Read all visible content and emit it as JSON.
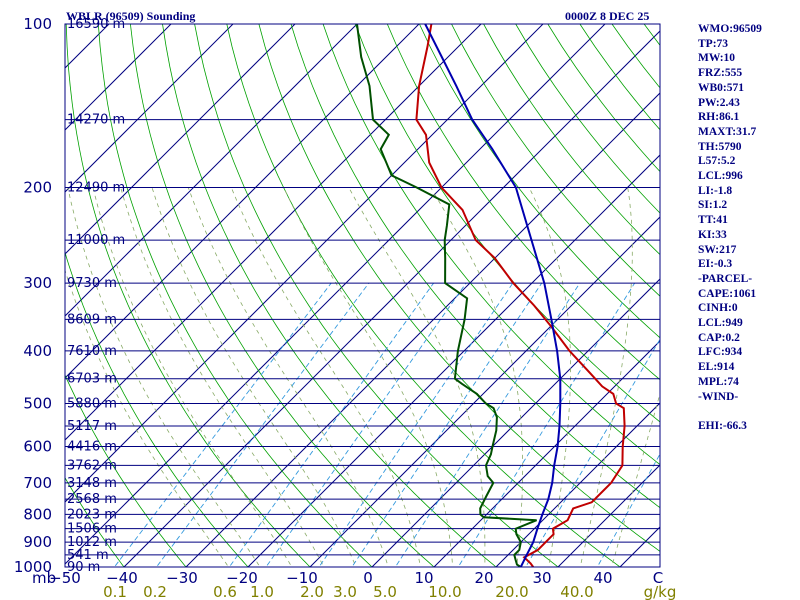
{
  "header": {
    "station": "WBLR (96509) Sounding",
    "time": "0000Z  8 DEC 25"
  },
  "indices": [
    "WMO:96509",
    "TP:73",
    "MW:10",
    "FRZ:555",
    "WB0:571",
    "PW:2.43",
    "RH:86.1",
    "MAXT:31.7",
    "TH:5790",
    "L57:5.2",
    "LCL:996",
    "LI:-1.8",
    "SI:1.2",
    "TT:41",
    "KI:33",
    "SW:217",
    "EI:-0.3",
    "-PARCEL-",
    "CAPE:1061",
    "CINH:0",
    "LCL:949",
    "CAP:0.2",
    "LFC:934",
    "EL:914",
    "MPL:74",
    "-WIND-",
    "",
    "EHI:-66.3"
  ],
  "chart_data": {
    "type": "line",
    "title": "WBLR (96509) Sounding",
    "subtitle": "0000Z  8 DEC 25",
    "yaxis_unit": "mb",
    "ylim": [
      1000,
      100
    ],
    "xlim": [
      -50,
      50
    ],
    "pressure_ticks": [
      100,
      200,
      300,
      400,
      500,
      600,
      700,
      800,
      900,
      1000
    ],
    "temperature_ticks": [
      "−50",
      "−40",
      "−30",
      "−20",
      "−10",
      "0",
      "10",
      "20",
      "30",
      "40",
      "C"
    ],
    "mixing_ratio_labels": [
      "0.1",
      "0.2",
      "0.6",
      "1.0",
      "2.0",
      "3.0",
      "5.0",
      "10.0",
      "20.0",
      "40.0",
      "g/kg"
    ],
    "height_levels": [
      {
        "p": 100,
        "label": "16590 m"
      },
      {
        "p": 150,
        "label": "14270 m"
      },
      {
        "p": 200,
        "label": "12490 m"
      },
      {
        "p": 250,
        "label": "11000 m"
      },
      {
        "p": 300,
        "label": "9730 m"
      },
      {
        "p": 350,
        "label": "8609 m"
      },
      {
        "p": 400,
        "label": "7610 m"
      },
      {
        "p": 450,
        "label": "6703 m"
      },
      {
        "p": 500,
        "label": "5880 m"
      },
      {
        "p": 550,
        "label": "5117 m"
      },
      {
        "p": 600,
        "label": "4416 m"
      },
      {
        "p": 650,
        "label": "3762 m"
      },
      {
        "p": 700,
        "label": "3148 m"
      },
      {
        "p": 750,
        "label": "2568 m"
      },
      {
        "p": 800,
        "label": "2023 m"
      },
      {
        "p": 850,
        "label": "1506 m"
      },
      {
        "p": 900,
        "label": "1012 m"
      },
      {
        "p": 950,
        "label": "541 m"
      },
      {
        "p": 1000,
        "label": "90 m"
      }
    ],
    "series": [
      {
        "name": "Temperature",
        "color": "#c00000",
        "points": [
          [
            1000,
            26
          ],
          [
            985,
            25
          ],
          [
            960,
            23
          ],
          [
            930,
            24
          ],
          [
            900,
            24
          ],
          [
            870,
            24
          ],
          [
            850,
            23
          ],
          [
            820,
            24
          ],
          [
            780,
            23
          ],
          [
            760,
            25
          ],
          [
            720,
            25
          ],
          [
            700,
            25
          ],
          [
            650,
            24
          ],
          [
            600,
            21
          ],
          [
            550,
            18
          ],
          [
            510,
            15
          ],
          [
            500,
            13
          ],
          [
            480,
            11
          ],
          [
            465,
            8
          ],
          [
            440,
            4
          ],
          [
            400,
            -3
          ],
          [
            360,
            -10
          ],
          [
            330,
            -16
          ],
          [
            300,
            -23
          ],
          [
            270,
            -30
          ],
          [
            250,
            -36
          ],
          [
            220,
            -43
          ],
          [
            200,
            -50
          ],
          [
            180,
            -56
          ],
          [
            160,
            -61
          ],
          [
            150,
            -65
          ],
          [
            130,
            -70
          ],
          [
            110,
            -75
          ],
          [
            100,
            -78
          ]
        ]
      },
      {
        "name": "Dewpoint",
        "color": "#005000",
        "points": [
          [
            1000,
            24
          ],
          [
            990,
            23
          ],
          [
            970,
            22
          ],
          [
            950,
            21
          ],
          [
            930,
            21
          ],
          [
            900,
            20
          ],
          [
            870,
            18
          ],
          [
            850,
            17
          ],
          [
            820,
            19
          ],
          [
            810,
            10
          ],
          [
            800,
            9
          ],
          [
            780,
            8
          ],
          [
            740,
            7
          ],
          [
            700,
            6
          ],
          [
            680,
            4
          ],
          [
            650,
            2
          ],
          [
            620,
            1
          ],
          [
            600,
            0
          ],
          [
            560,
            -2
          ],
          [
            530,
            -4
          ],
          [
            510,
            -6
          ],
          [
            500,
            -8
          ],
          [
            480,
            -11
          ],
          [
            460,
            -15
          ],
          [
            450,
            -17
          ],
          [
            400,
            -21
          ],
          [
            350,
            -25
          ],
          [
            320,
            -28
          ],
          [
            300,
            -34
          ],
          [
            270,
            -38
          ],
          [
            250,
            -41
          ],
          [
            235,
            -43
          ],
          [
            215,
            -46
          ],
          [
            200,
            -54
          ],
          [
            190,
            -60
          ],
          [
            170,
            -66
          ],
          [
            160,
            -67
          ],
          [
            150,
            -72
          ],
          [
            130,
            -78
          ],
          [
            115,
            -84
          ],
          [
            100,
            -90
          ]
        ]
      },
      {
        "name": "Parcel",
        "color": "#0000b0",
        "points": [
          [
            1000,
            24
          ],
          [
            950,
            23
          ],
          [
            900,
            22
          ],
          [
            850,
            20.5
          ],
          [
            800,
            19
          ],
          [
            750,
            17.5
          ],
          [
            700,
            15.5
          ],
          [
            650,
            13
          ],
          [
            600,
            10.5
          ],
          [
            550,
            7.5
          ],
          [
            500,
            4
          ],
          [
            450,
            0
          ],
          [
            400,
            -5
          ],
          [
            350,
            -11
          ],
          [
            300,
            -18
          ],
          [
            250,
            -27
          ],
          [
            200,
            -38
          ],
          [
            170,
            -48
          ],
          [
            150,
            -56
          ],
          [
            130,
            -64
          ],
          [
            115,
            -71
          ],
          [
            100,
            -79
          ]
        ]
      }
    ]
  }
}
